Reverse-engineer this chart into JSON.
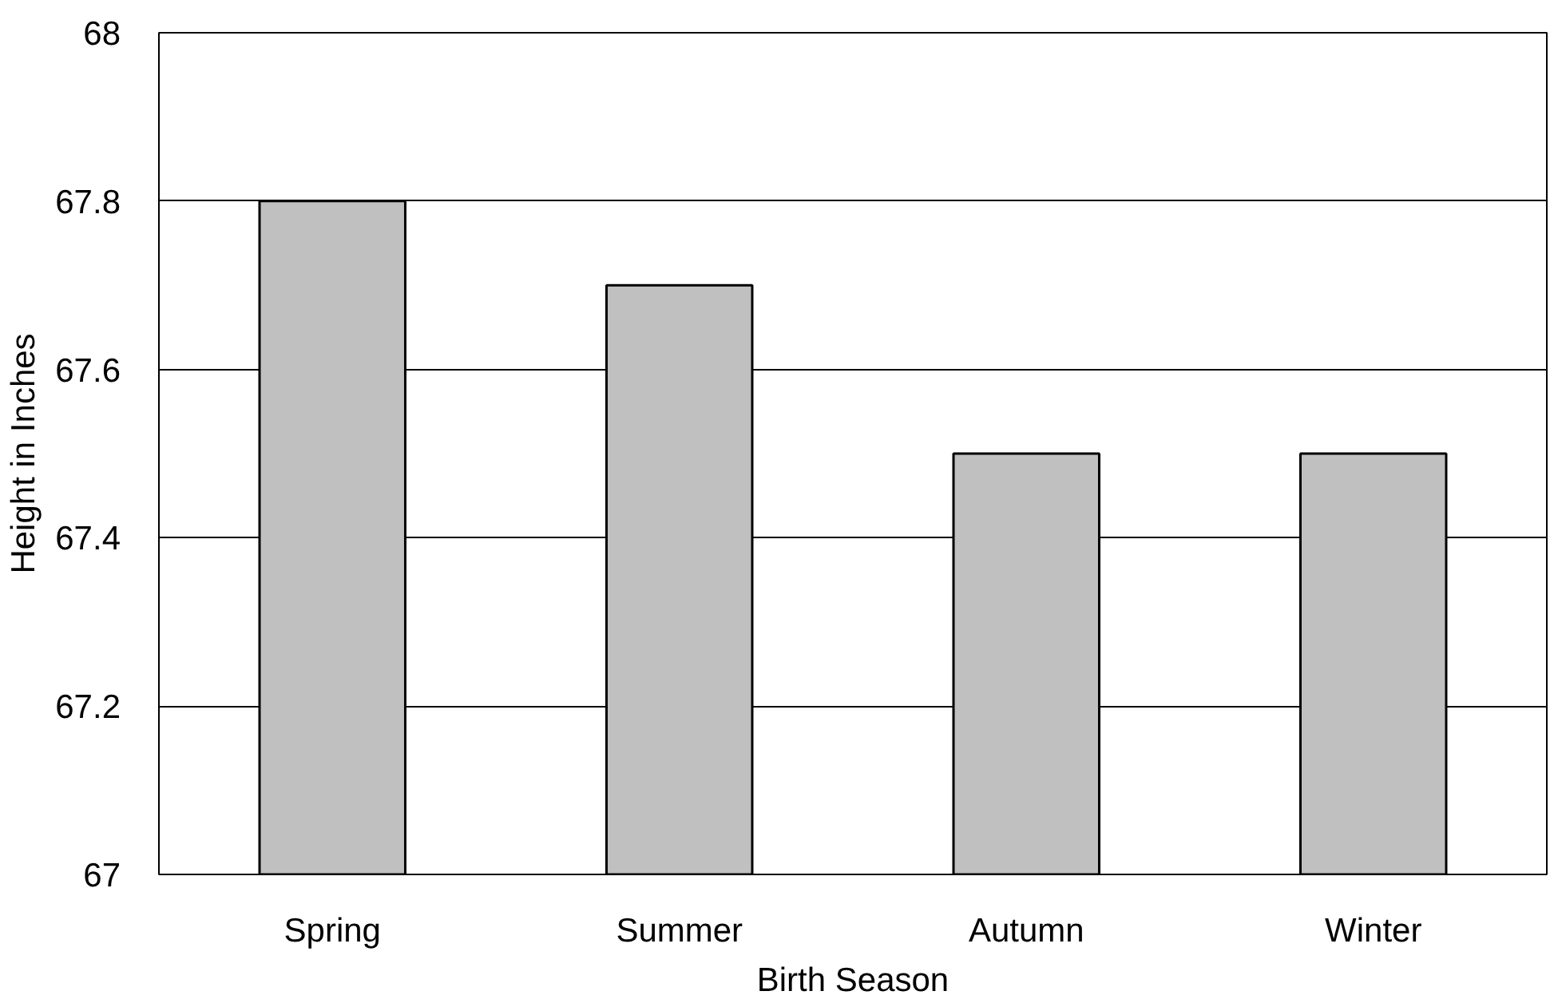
{
  "chart_data": {
    "type": "bar",
    "xlabel": "Birth Season",
    "ylabel": "Height in Inches",
    "categories": [
      "Spring",
      "Summer",
      "Autumn",
      "Winter"
    ],
    "values": [
      67.8,
      67.7,
      67.5,
      67.5
    ],
    "color": "#c0c0c0",
    "ylim": [
      67,
      68
    ],
    "yticks": [
      67,
      67.2,
      67.4,
      67.6,
      67.8,
      68
    ],
    "grid": "y"
  }
}
